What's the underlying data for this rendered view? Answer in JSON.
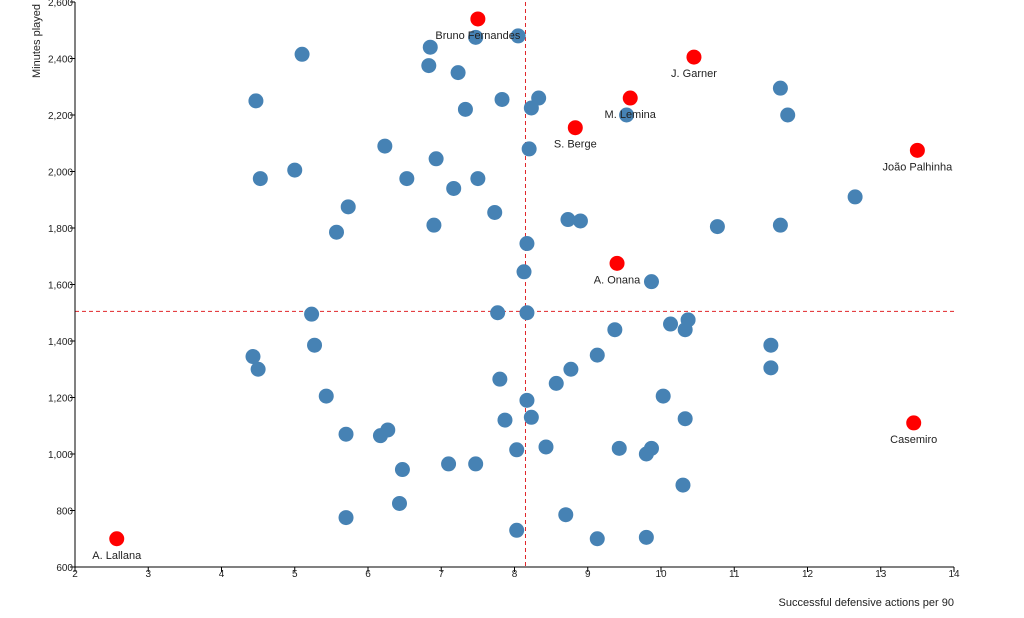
{
  "chart_data": {
    "type": "scatter",
    "xlabel": "Successful defensive actions per 90",
    "ylabel": "Minutes played",
    "xlim": [
      2,
      14
    ],
    "ylim": [
      600,
      2600
    ],
    "x_ticks": [
      "2",
      "3",
      "4",
      "5",
      "6",
      "7",
      "8",
      "9",
      "10",
      "11",
      "12",
      "13",
      "14"
    ],
    "y_ticks": [
      "600",
      "800",
      "1,000",
      "1,200",
      "1,400",
      "1,600",
      "1,800",
      "2,000",
      "2,200",
      "2,400",
      "2,600"
    ],
    "x_tick_values": [
      2,
      3,
      4,
      5,
      6,
      7,
      8,
      9,
      10,
      11,
      12,
      13,
      14
    ],
    "y_tick_values": [
      600,
      800,
      1000,
      1200,
      1400,
      1600,
      1800,
      2000,
      2200,
      2400,
      2600
    ],
    "reference_lines": {
      "x": 8.15,
      "y": 1505
    },
    "colors": {
      "others": "#4682b4",
      "highlighted": "#ff0000",
      "reference": "#e0262a"
    },
    "highlighted": [
      {
        "label": "Bruno Fernandes",
        "x": 7.5,
        "y": 2540
      },
      {
        "label": "J. Garner",
        "x": 10.45,
        "y": 2405
      },
      {
        "label": "M. Lemina",
        "x": 9.58,
        "y": 2260
      },
      {
        "label": "S. Berge",
        "x": 8.83,
        "y": 2155
      },
      {
        "label": "João Palhinha",
        "x": 13.5,
        "y": 2075
      },
      {
        "label": "A. Onana",
        "x": 9.4,
        "y": 1675
      },
      {
        "label": "Casemiro",
        "x": 13.45,
        "y": 1110
      },
      {
        "label": "A. Lallana",
        "x": 2.57,
        "y": 700
      }
    ],
    "others": [
      {
        "x": 8.05,
        "y": 2480
      },
      {
        "x": 7.47,
        "y": 2475
      },
      {
        "x": 5.1,
        "y": 2415
      },
      {
        "x": 6.85,
        "y": 2440
      },
      {
        "x": 6.83,
        "y": 2375
      },
      {
        "x": 7.23,
        "y": 2350
      },
      {
        "x": 4.47,
        "y": 2250
      },
      {
        "x": 7.33,
        "y": 2220
      },
      {
        "x": 7.83,
        "y": 2255
      },
      {
        "x": 8.33,
        "y": 2260
      },
      {
        "x": 8.23,
        "y": 2225
      },
      {
        "x": 9.53,
        "y": 2200
      },
      {
        "x": 11.63,
        "y": 2295
      },
      {
        "x": 11.73,
        "y": 2200
      },
      {
        "x": 6.23,
        "y": 2090
      },
      {
        "x": 8.2,
        "y": 2080
      },
      {
        "x": 6.93,
        "y": 2045
      },
      {
        "x": 5.0,
        "y": 2005
      },
      {
        "x": 4.53,
        "y": 1975
      },
      {
        "x": 6.53,
        "y": 1975
      },
      {
        "x": 7.17,
        "y": 1940
      },
      {
        "x": 7.5,
        "y": 1975
      },
      {
        "x": 5.73,
        "y": 1875
      },
      {
        "x": 7.73,
        "y": 1855
      },
      {
        "x": 12.65,
        "y": 1910
      },
      {
        "x": 8.73,
        "y": 1830
      },
      {
        "x": 8.9,
        "y": 1825
      },
      {
        "x": 6.9,
        "y": 1810
      },
      {
        "x": 5.57,
        "y": 1785
      },
      {
        "x": 10.77,
        "y": 1805
      },
      {
        "x": 11.63,
        "y": 1810
      },
      {
        "x": 8.17,
        "y": 1745
      },
      {
        "x": 8.13,
        "y": 1645
      },
      {
        "x": 9.87,
        "y": 1610
      },
      {
        "x": 5.23,
        "y": 1495
      },
      {
        "x": 7.77,
        "y": 1500
      },
      {
        "x": 8.17,
        "y": 1500
      },
      {
        "x": 10.13,
        "y": 1460
      },
      {
        "x": 10.37,
        "y": 1475
      },
      {
        "x": 9.37,
        "y": 1440
      },
      {
        "x": 10.33,
        "y": 1440
      },
      {
        "x": 5.27,
        "y": 1385
      },
      {
        "x": 4.43,
        "y": 1345
      },
      {
        "x": 4.5,
        "y": 1300
      },
      {
        "x": 9.13,
        "y": 1350
      },
      {
        "x": 11.5,
        "y": 1385
      },
      {
        "x": 11.5,
        "y": 1305
      },
      {
        "x": 8.77,
        "y": 1300
      },
      {
        "x": 7.8,
        "y": 1265
      },
      {
        "x": 8.57,
        "y": 1250
      },
      {
        "x": 5.43,
        "y": 1205
      },
      {
        "x": 10.03,
        "y": 1205
      },
      {
        "x": 8.17,
        "y": 1190
      },
      {
        "x": 7.87,
        "y": 1120
      },
      {
        "x": 8.23,
        "y": 1130
      },
      {
        "x": 10.33,
        "y": 1125
      },
      {
        "x": 5.7,
        "y": 1070
      },
      {
        "x": 6.27,
        "y": 1085
      },
      {
        "x": 6.17,
        "y": 1065
      },
      {
        "x": 8.43,
        "y": 1025
      },
      {
        "x": 8.03,
        "y": 1015
      },
      {
        "x": 9.43,
        "y": 1020
      },
      {
        "x": 9.87,
        "y": 1020
      },
      {
        "x": 9.8,
        "y": 1000
      },
      {
        "x": 6.47,
        "y": 945
      },
      {
        "x": 7.1,
        "y": 965
      },
      {
        "x": 7.47,
        "y": 965
      },
      {
        "x": 10.3,
        "y": 890
      },
      {
        "x": 6.43,
        "y": 825
      },
      {
        "x": 5.7,
        "y": 775
      },
      {
        "x": 8.7,
        "y": 785
      },
      {
        "x": 8.03,
        "y": 730
      },
      {
        "x": 9.13,
        "y": 700
      },
      {
        "x": 9.8,
        "y": 705
      }
    ]
  }
}
